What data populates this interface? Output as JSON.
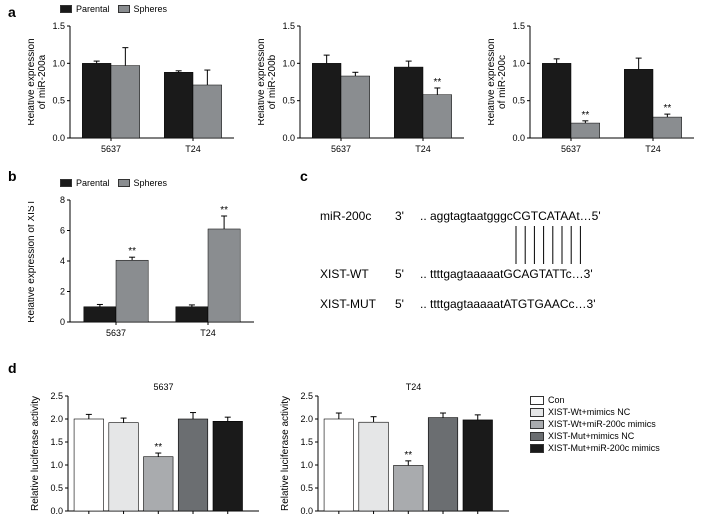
{
  "colors": {
    "parental": "#1a1a1a",
    "spheres": "#8a8d90",
    "con": "#ffffff",
    "wt_nc": "#e5e6e7",
    "wt_mimics": "#a9abae",
    "mut_nc": "#6b6e71",
    "mut_mimics": "#1a1a1a",
    "axis": "#000000",
    "bg": "#ffffff"
  },
  "labels": {
    "a": "a",
    "b": "b",
    "c": "c",
    "d": "d"
  },
  "legend_top": {
    "parental": "Parental",
    "spheres": "Spheres"
  },
  "panel_a": {
    "y_title_prefix": "Relative expression",
    "charts": [
      {
        "y_title_suffix": "of miR-200a",
        "ylim": [
          0,
          1.5
        ],
        "ytick_step": 0.5,
        "groups": [
          "5637",
          "T24"
        ],
        "bar_width": 0.35,
        "series": [
          {
            "key": "parental",
            "values": [
              1.0,
              0.88
            ],
            "err": [
              0.03,
              0.02
            ],
            "sig": [
              "",
              ""
            ]
          },
          {
            "key": "spheres",
            "values": [
              0.97,
              0.71
            ],
            "err": [
              0.24,
              0.2
            ],
            "sig": [
              "",
              ""
            ]
          }
        ]
      },
      {
        "y_title_suffix": "of miR-200b",
        "ylim": [
          0,
          1.5
        ],
        "ytick_step": 0.5,
        "groups": [
          "5637",
          "T24"
        ],
        "bar_width": 0.35,
        "series": [
          {
            "key": "parental",
            "values": [
              1.0,
              0.95
            ],
            "err": [
              0.11,
              0.08
            ],
            "sig": [
              "",
              ""
            ]
          },
          {
            "key": "spheres",
            "values": [
              0.83,
              0.58
            ],
            "err": [
              0.05,
              0.09
            ],
            "sig": [
              "",
              "**"
            ]
          }
        ]
      },
      {
        "y_title_suffix": "of miR-200c",
        "ylim": [
          0,
          1.5
        ],
        "ytick_step": 0.5,
        "groups": [
          "5637",
          "T24"
        ],
        "bar_width": 0.35,
        "series": [
          {
            "key": "parental",
            "values": [
              1.0,
              0.92
            ],
            "err": [
              0.06,
              0.15
            ],
            "sig": [
              "",
              ""
            ]
          },
          {
            "key": "spheres",
            "values": [
              0.2,
              0.28
            ],
            "err": [
              0.03,
              0.04
            ],
            "sig": [
              "**",
              "**"
            ]
          }
        ]
      }
    ]
  },
  "panel_b": {
    "y_title": "Relative expression of XIST",
    "ylim": [
      0,
      8
    ],
    "ytick_step": 2,
    "groups": [
      "5637",
      "T24"
    ],
    "bar_width": 0.35,
    "series": [
      {
        "key": "parental",
        "values": [
          1.0,
          1.0
        ],
        "err": [
          0.15,
          0.12
        ],
        "sig": [
          "",
          ""
        ]
      },
      {
        "key": "spheres",
        "values": [
          4.05,
          6.1
        ],
        "err": [
          0.2,
          0.85
        ],
        "sig": [
          "**",
          "**"
        ]
      }
    ]
  },
  "panel_c": {
    "rows": [
      {
        "label": "miR-200c",
        "end5": "3'",
        "seq_lower": ".. aggtagtaatgggc",
        "seq_upper": "CGTCATAA",
        "seq_tail": "t…5'"
      },
      {
        "label": "XIST-WT",
        "end5": "5'",
        "seq_lower": ".. ttttgagtaaaaat",
        "seq_upper": "GCAGTATT",
        "seq_tail": "c…3'"
      },
      {
        "label": "XIST-MUT",
        "end5": "5'",
        "seq_lower": ".. ttttgagtaaaaat",
        "seq_upper": "ATGTGAAC",
        "seq_tail": "c…3'"
      }
    ],
    "match_bars": 8
  },
  "panel_d": {
    "y_title": "Relative luciferase activity",
    "ylim": [
      0,
      2.5
    ],
    "ytick_step": 0.5,
    "bar_width": 0.14,
    "charts": [
      {
        "title": "5637",
        "bars": [
          {
            "key": "con",
            "value": 2.0,
            "err": 0.1,
            "sig": ""
          },
          {
            "key": "wt_nc",
            "value": 1.92,
            "err": 0.1,
            "sig": ""
          },
          {
            "key": "wt_mimics",
            "value": 1.18,
            "err": 0.08,
            "sig": "**"
          },
          {
            "key": "mut_nc",
            "value": 2.0,
            "err": 0.14,
            "sig": ""
          },
          {
            "key": "mut_mimics",
            "value": 1.95,
            "err": 0.09,
            "sig": ""
          }
        ]
      },
      {
        "title": "T24",
        "bars": [
          {
            "key": "con",
            "value": 2.0,
            "err": 0.13,
            "sig": ""
          },
          {
            "key": "wt_nc",
            "value": 1.93,
            "err": 0.12,
            "sig": ""
          },
          {
            "key": "wt_mimics",
            "value": 0.99,
            "err": 0.1,
            "sig": "**"
          },
          {
            "key": "mut_nc",
            "value": 2.03,
            "err": 0.1,
            "sig": ""
          },
          {
            "key": "mut_mimics",
            "value": 1.98,
            "err": 0.11,
            "sig": ""
          }
        ]
      }
    ],
    "legend": [
      {
        "key": "con",
        "label": "Con"
      },
      {
        "key": "wt_nc",
        "label": "XIST-Wt+mimics NC"
      },
      {
        "key": "wt_mimics",
        "label": "XIST-Wt+miR-200c mimics"
      },
      {
        "key": "mut_nc",
        "label": "XIST-Mut+mimics NC"
      },
      {
        "key": "mut_mimics",
        "label": "XIST-Mut+miR-200c mimics"
      }
    ]
  }
}
